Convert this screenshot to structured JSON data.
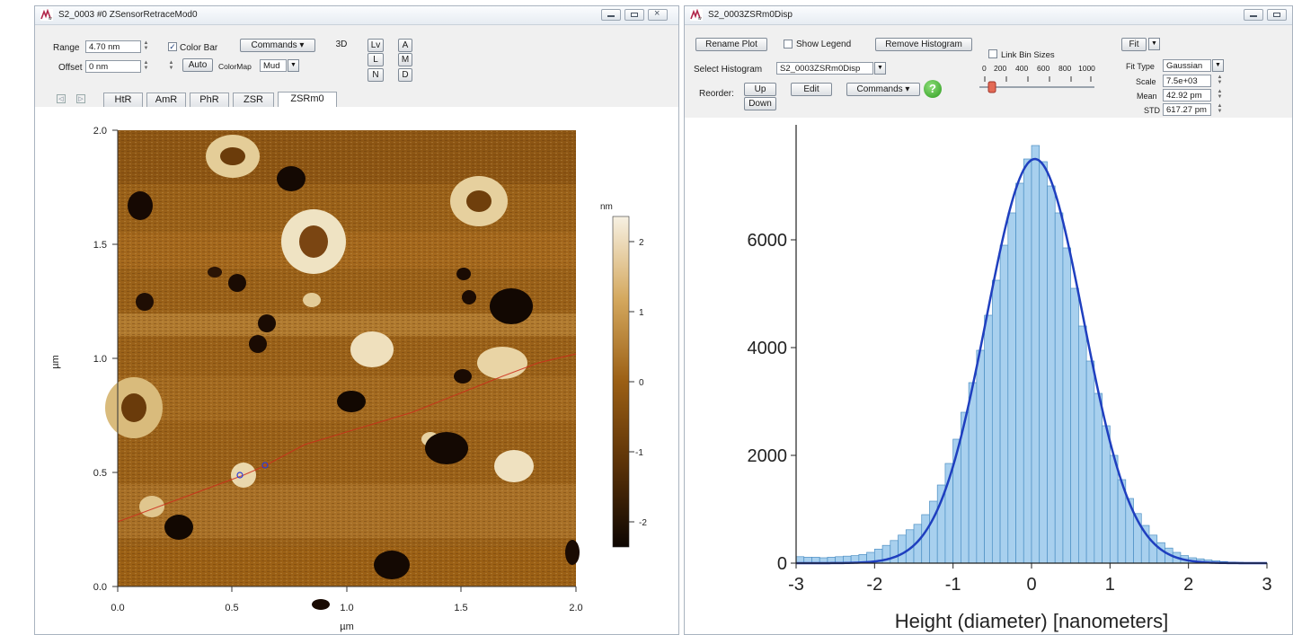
{
  "left_window": {
    "title": "S2_0003 #0 ZSensorRetraceMod0",
    "range_label": "Range",
    "range_value": "4.70 nm",
    "offset_label": "Offset",
    "offset_value": "0 nm",
    "colorbar_label": "Color Bar",
    "colorbar_checked": true,
    "commands_label": "Commands",
    "auto_label": "Auto",
    "colormap_label": "ColorMap",
    "colormap_value": "Mud",
    "button_3d": "3D",
    "button_lv": "Lv",
    "button_a": "A",
    "button_l": "L",
    "button_m": "M",
    "button_n": "N",
    "button_d": "D",
    "tabs": [
      "HtR",
      "AmR",
      "PhR",
      "ZSR",
      "ZSRm0"
    ],
    "active_tab": "ZSRm0",
    "image": {
      "y_ticks": [
        "2.0",
        "1.5",
        "1.0",
        "0.5",
        "0.0"
      ],
      "x_ticks": [
        "0.0",
        "0.5",
        "1.0",
        "1.5",
        "2.0"
      ],
      "y_label": "µm",
      "x_label": "µm",
      "colorbar_unit": "nm",
      "colorbar_ticks": [
        "2",
        "1",
        "0",
        "-1",
        "-2"
      ],
      "colormap_colors": [
        "#f7f1e3",
        "#d4a85e",
        "#9b5f14",
        "#5b3208",
        "#0d0602"
      ]
    }
  },
  "right_window": {
    "title": "S2_0003ZSRm0Disp",
    "rename_plot_label": "Rename Plot",
    "show_legend_label": "Show Legend",
    "show_legend_checked": false,
    "remove_histogram_label": "Remove Histogram",
    "link_bin_sizes_label": "Link Bin Sizes",
    "link_bin_sizes_checked": false,
    "slider_ticks": [
      "0",
      "200",
      "400",
      "600",
      "800",
      "1000"
    ],
    "fit_label": "Fit",
    "select_histogram_label": "Select Histogram",
    "select_histogram_value": "S2_0003ZSRm0Disp",
    "fit_type_label": "Fit Type",
    "fit_type_value": "Gaussian",
    "scale_label": "Scale",
    "scale_value": "7.5e+03",
    "mean_label": "Mean",
    "mean_value": "42.92 pm",
    "std_label": "STD",
    "std_value": "617.27 pm",
    "reorder_label": "Reorder:",
    "up_label": "Up",
    "down_label": "Down",
    "edit_label": "Edit",
    "commands_label": "Commands",
    "help_icon": "question-mark-icon",
    "bar_color": "#a8d0ee",
    "bar_edge_color": "#4d8fc4",
    "fit_color": "#1f3fbf"
  },
  "chart_data": {
    "type": "bar",
    "title": "",
    "xlabel": "Height (diameter) [nanometers]",
    "ylabel": "",
    "xlim": [
      -3,
      3
    ],
    "ylim": [
      0,
      7700
    ],
    "x_ticks": [
      "-3",
      "-2",
      "-1",
      "0",
      "1",
      "2",
      "3"
    ],
    "y_ticks": [
      "0",
      "2000",
      "4000",
      "6000"
    ],
    "bin_width": 0.1,
    "bin_centers": [
      -2.95,
      -2.85,
      -2.75,
      -2.65,
      -2.55,
      -2.45,
      -2.35,
      -2.25,
      -2.15,
      -2.05,
      -1.95,
      -1.85,
      -1.75,
      -1.65,
      -1.55,
      -1.45,
      -1.35,
      -1.25,
      -1.15,
      -1.05,
      -0.95,
      -0.85,
      -0.75,
      -0.65,
      -0.55,
      -0.45,
      -0.35,
      -0.25,
      -0.15,
      -0.05,
      0.05,
      0.15,
      0.25,
      0.35,
      0.45,
      0.55,
      0.65,
      0.75,
      0.85,
      0.95,
      1.05,
      1.15,
      1.25,
      1.35,
      1.45,
      1.55,
      1.65,
      1.75,
      1.85,
      1.95,
      2.05,
      2.15,
      2.25,
      2.35,
      2.45,
      2.55,
      2.65,
      2.75,
      2.85,
      2.95
    ],
    "series": [
      {
        "type": "bar",
        "values": [
          120,
          110,
          110,
          100,
          110,
          120,
          130,
          140,
          160,
          200,
          260,
          330,
          420,
          520,
          620,
          720,
          900,
          1150,
          1450,
          1850,
          2300,
          2800,
          3350,
          3950,
          4600,
          5250,
          5900,
          6500,
          7050,
          7500,
          7750,
          7450,
          7000,
          6500,
          5850,
          5100,
          4400,
          3750,
          3150,
          2550,
          2000,
          1550,
          1200,
          920,
          700,
          520,
          380,
          280,
          200,
          140,
          100,
          80,
          60,
          45,
          30,
          20,
          15,
          10,
          8,
          5
        ]
      },
      {
        "type": "line",
        "mean": 0.04292,
        "std": 0.61727,
        "scale": 7500
      }
    ]
  }
}
